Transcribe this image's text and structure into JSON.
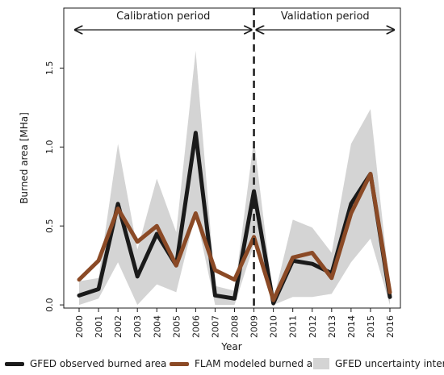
{
  "chart_data": {
    "type": "line",
    "title": "",
    "xlabel": "Year",
    "ylabel": "Burned area [MHa]",
    "x": [
      "2000",
      "2001",
      "2002",
      "2003",
      "2004",
      "2005",
      "2006",
      "2007",
      "2008",
      "2009",
      "2010",
      "2011",
      "2012",
      "2013",
      "2014",
      "2015",
      "2016"
    ],
    "yticks": [
      "0.0",
      "0.5",
      "1.0",
      "1.5"
    ],
    "ylim": [
      -0.02,
      1.88
    ],
    "series": [
      {
        "name": "GFED observed burned area",
        "color": "#1a1a1a",
        "values": [
          0.06,
          0.1,
          0.64,
          0.18,
          0.45,
          0.25,
          1.09,
          0.06,
          0.04,
          0.72,
          0.01,
          0.28,
          0.26,
          0.2,
          0.64,
          0.83,
          0.05
        ]
      },
      {
        "name": "FLAM modeled burned area",
        "color": "#8b4a26",
        "values": [
          0.16,
          0.28,
          0.61,
          0.4,
          0.5,
          0.25,
          0.58,
          0.22,
          0.16,
          0.43,
          0.03,
          0.3,
          0.33,
          0.17,
          0.58,
          0.83,
          0.08
        ]
      }
    ],
    "band": {
      "name": "GFED uncertainty interval",
      "color": "#d4d4d4",
      "lower": [
        0.0,
        0.04,
        0.27,
        0.0,
        0.13,
        0.08,
        0.58,
        0.0,
        0.0,
        0.38,
        0.0,
        0.05,
        0.05,
        0.07,
        0.27,
        0.42,
        0.0
      ],
      "upper": [
        0.15,
        0.17,
        1.02,
        0.35,
        0.8,
        0.46,
        1.61,
        0.12,
        0.09,
        1.05,
        0.03,
        0.54,
        0.49,
        0.33,
        1.02,
        1.24,
        0.1
      ]
    },
    "divider": {
      "after_category": "2009",
      "style": "dashed"
    },
    "periods": [
      {
        "label": "Calibration period",
        "from": "2000",
        "to": "2009"
      },
      {
        "label": "Validation period",
        "from": "2009",
        "to": "2016"
      }
    ],
    "legend_position": "bottom"
  }
}
